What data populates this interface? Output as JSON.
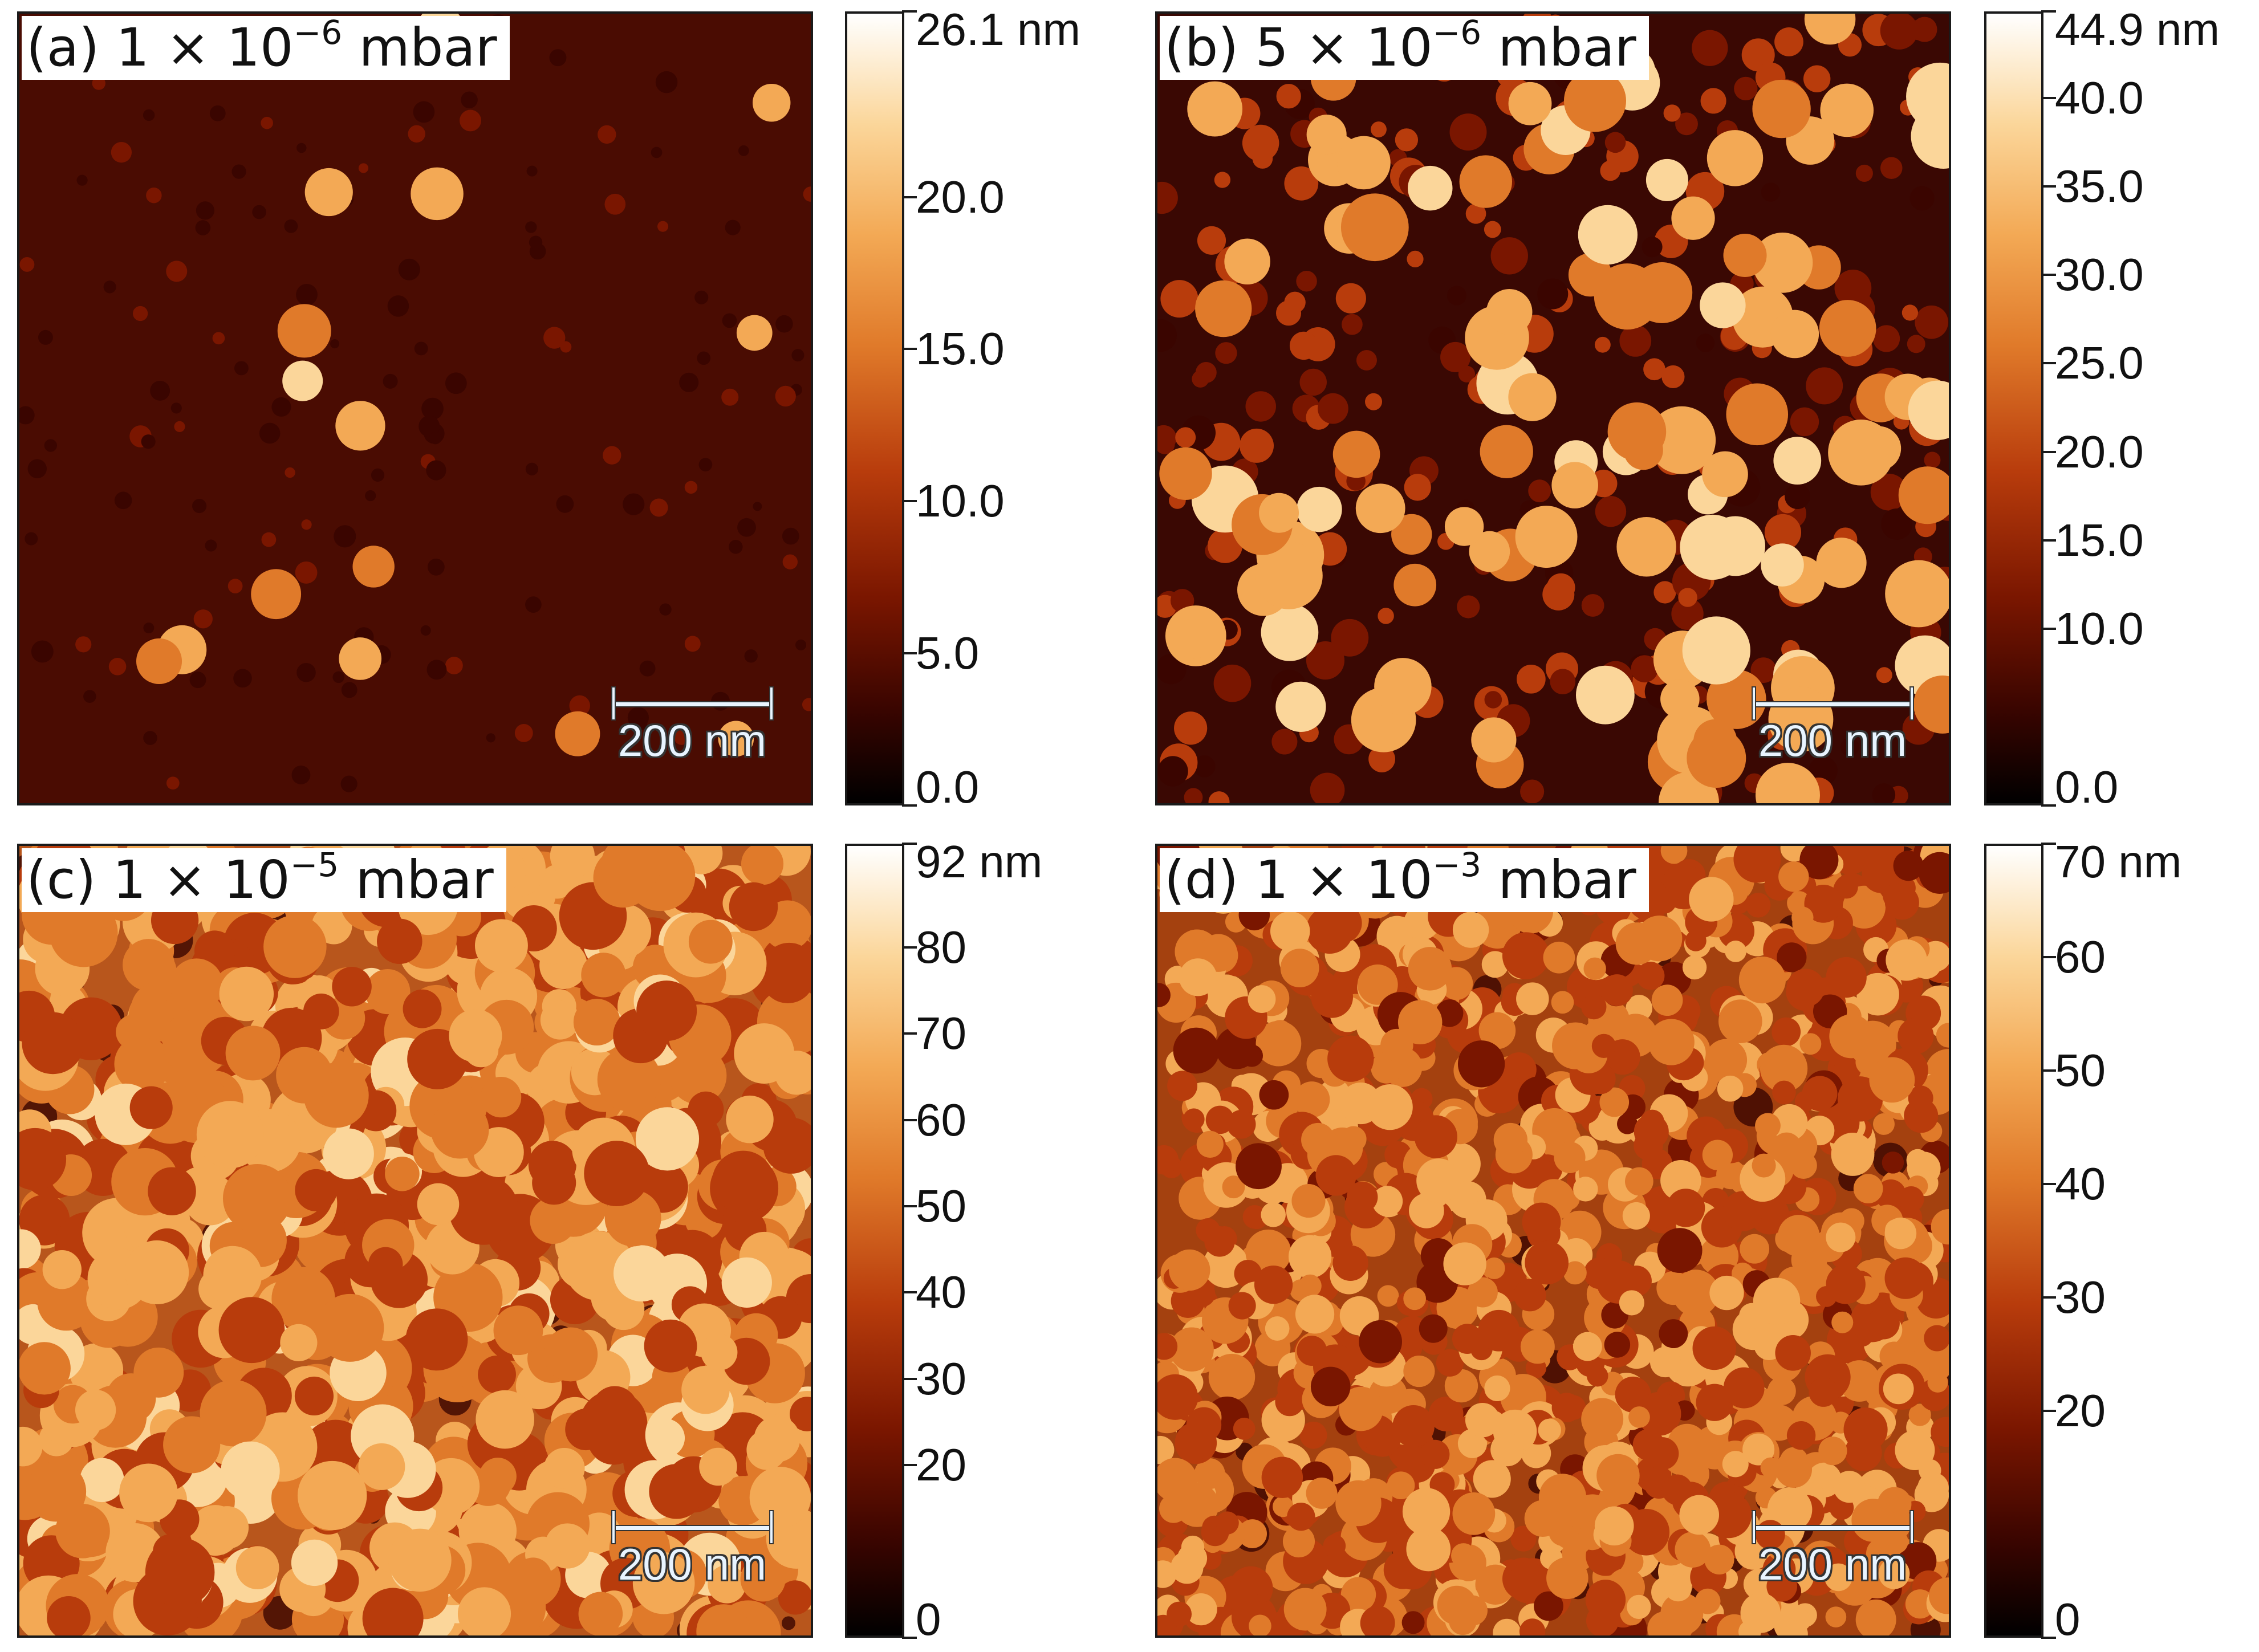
{
  "panels": [
    {
      "label_prefix": "(a)  1 × 10",
      "exponent": "−6",
      "label_suffix": " mbar",
      "scale_bar": "200 nm",
      "colorbar": {
        "max_label": "26.1 nm",
        "ticks": [
          "20.0",
          "15.0",
          "10.0",
          "5.0",
          "0.0"
        ],
        "max": 26.1,
        "tick_values": [
          20,
          15,
          10,
          5,
          0
        ]
      }
    },
    {
      "label_prefix": "(b)  5 × 10",
      "exponent": "−6",
      "label_suffix": " mbar",
      "scale_bar": "200 nm",
      "colorbar": {
        "max_label": "44.9 nm",
        "ticks": [
          "40.0",
          "35.0",
          "30.0",
          "25.0",
          "20.0",
          "15.0",
          "10.0",
          "0.0"
        ],
        "max": 44.9,
        "tick_values": [
          40,
          35,
          30,
          25,
          20,
          15,
          10,
          0
        ]
      }
    },
    {
      "label_prefix": "(c)  1 × 10",
      "exponent": "−5",
      "label_suffix": " mbar",
      "scale_bar": "200 nm",
      "colorbar": {
        "max_label": "92 nm",
        "ticks": [
          "80",
          "70",
          "60",
          "50",
          "40",
          "30",
          "20",
          "0"
        ],
        "max": 92,
        "tick_values": [
          80,
          70,
          60,
          50,
          40,
          30,
          20,
          0
        ]
      }
    },
    {
      "label_prefix": "(d)  1 × 10",
      "exponent": "−3",
      "label_suffix": " mbar",
      "scale_bar": "200 nm",
      "colorbar": {
        "max_label": "70 nm",
        "ticks": [
          "60",
          "50",
          "40",
          "30",
          "20",
          "0"
        ],
        "max": 70,
        "tick_values": [
          60,
          50,
          40,
          30,
          20,
          0
        ]
      }
    }
  ],
  "colormap": [
    "#000000",
    "#3a0500",
    "#7a1600",
    "#b83c0c",
    "#e07a2a",
    "#f3a955",
    "#fbd69a",
    "#ffffff"
  ]
}
